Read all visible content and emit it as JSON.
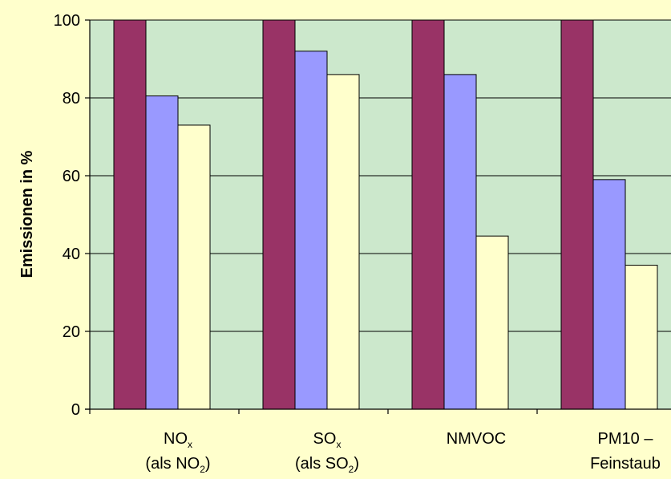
{
  "chart_data": {
    "type": "bar",
    "title": "",
    "xlabel": "",
    "ylabel": "Emissionen in %",
    "ylim": [
      0,
      100
    ],
    "yticks": [
      0,
      20,
      40,
      60,
      80,
      100
    ],
    "grid": true,
    "categories": [
      {
        "lines": [
          {
            "main": "NO",
            "sub": "x",
            "tail": ""
          },
          {
            "main": "(als NO",
            "sub": "2",
            "tail": ")"
          }
        ]
      },
      {
        "lines": [
          {
            "main": "SO",
            "sub": "x",
            "tail": ""
          },
          {
            "main": "(als SO",
            "sub": "2",
            "tail": ")"
          }
        ]
      },
      {
        "lines": [
          {
            "main": "NMVOC",
            "sub": "",
            "tail": ""
          }
        ]
      },
      {
        "lines": [
          {
            "main": "PM10 –",
            "sub": "",
            "tail": ""
          },
          {
            "main": "Feinstaub",
            "sub": "",
            "tail": ""
          }
        ]
      }
    ],
    "series": [
      {
        "values": [
          100,
          100,
          100,
          100
        ],
        "color": "#993366"
      },
      {
        "values": [
          80.5,
          92,
          86,
          59
        ],
        "color": "#9999ff"
      },
      {
        "values": [
          73,
          86,
          44.5,
          37
        ],
        "color": "#ffffcc"
      }
    ],
    "series_values_note_removed": true,
    "colors": {
      "background": "#ffffcc",
      "plot_area": "#cce8cc",
      "gridline": "#000000"
    }
  }
}
